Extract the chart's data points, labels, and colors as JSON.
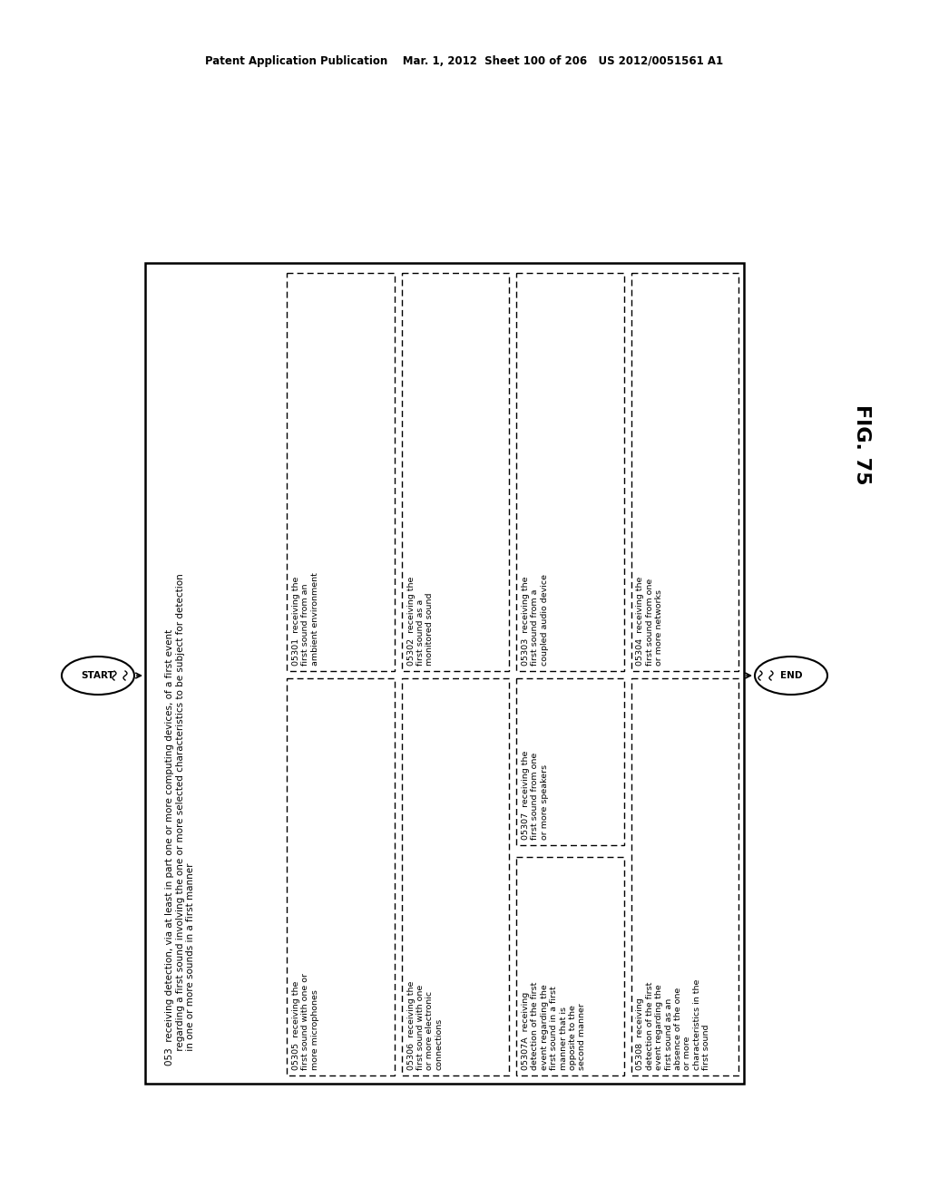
{
  "fig_width": 10.24,
  "fig_height": 13.2,
  "bg_color": "#ffffff",
  "header_text": "Patent Application Publication    Mar. 1, 2012  Sheet 100 of 206   US 2012/0051561 A1",
  "fig_label": "FIG. 75",
  "start_label": "START",
  "end_label": "END",
  "main_desc_line1": "053  receiving detection, via at least in part one or more computing devices, of a first event",
  "main_desc_line2": "     regarding a first sound involving the one or more selected characteristics to be subject for detection",
  "main_desc_line3": "     in one or more sounds in a first manner",
  "boxes": [
    {
      "id": "05301",
      "text": "05301  receiving the\nfirst sound from an\nambient environment",
      "row": 0,
      "col": 0,
      "sub": false
    },
    {
      "id": "05302",
      "text": "05302  receiving the\nfirst sound as a\nmonitored sound",
      "row": 0,
      "col": 1,
      "sub": false
    },
    {
      "id": "05303",
      "text": "05303  receiving the\nfirst sound from a\ncoupled audio device",
      "row": 0,
      "col": 2,
      "sub": false
    },
    {
      "id": "05304",
      "text": "05304  receiving the\nfirst sound from one\nor more networks",
      "row": 0,
      "col": 3,
      "sub": false
    },
    {
      "id": "05305",
      "text": "05305  receiving the\nfirst sound with one or\nmore microphones",
      "row": 1,
      "col": 0,
      "sub": false
    },
    {
      "id": "05306",
      "text": "05306  receiving the\nfirst sound with one\nor more electronic\nconnections",
      "row": 1,
      "col": 1,
      "sub": false
    },
    {
      "id": "05307",
      "text": "05307  receiving the\nfirst sound from one\nor more speakers",
      "row": 1,
      "col": 2,
      "sub": false
    },
    {
      "id": "05308",
      "text": "05308  receiving\ndetection of the first\nevent regarding the\nfirst sound as an\nabsence of the one\nor more\ncharacteristics in the\nfirst sound",
      "row": 1,
      "col": 3,
      "sub": false
    },
    {
      "id": "05307A",
      "text": "05307A  receiving\ndetection of the first\nevent regarding the\nfirst sound in a first\nmanner that is\nopposite to the\nsecond manner",
      "row": 1,
      "col": 2,
      "sub": true
    }
  ]
}
